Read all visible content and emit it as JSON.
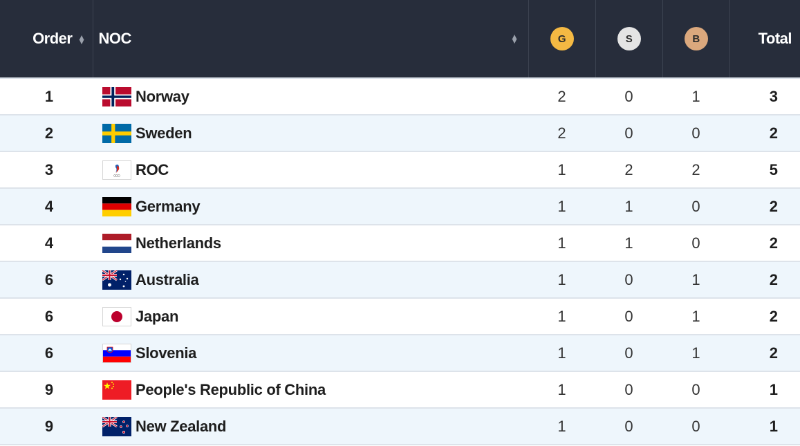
{
  "header": {
    "order_label": "Order",
    "noc_label": "NOC",
    "gold_label": "G",
    "silver_label": "S",
    "bronze_label": "B",
    "total_label": "Total"
  },
  "colors": {
    "header_bg": "#272d3b",
    "gold": "#f4b943",
    "silver": "#e4e4e4",
    "bronze": "#dba87d",
    "row_alt": "#eef6fc"
  },
  "rows": [
    {
      "order": "1",
      "noc": "Norway",
      "flag": "norway-flag",
      "gold": "2",
      "silver": "0",
      "bronze": "1",
      "total": "3"
    },
    {
      "order": "2",
      "noc": "Sweden",
      "flag": "sweden-flag",
      "gold": "2",
      "silver": "0",
      "bronze": "0",
      "total": "2"
    },
    {
      "order": "3",
      "noc": "ROC",
      "flag": "roc-flag",
      "gold": "1",
      "silver": "2",
      "bronze": "2",
      "total": "5"
    },
    {
      "order": "4",
      "noc": "Germany",
      "flag": "germany-flag",
      "gold": "1",
      "silver": "1",
      "bronze": "0",
      "total": "2"
    },
    {
      "order": "4",
      "noc": "Netherlands",
      "flag": "netherlands-flag",
      "gold": "1",
      "silver": "1",
      "bronze": "0",
      "total": "2"
    },
    {
      "order": "6",
      "noc": "Australia",
      "flag": "australia-flag",
      "gold": "1",
      "silver": "0",
      "bronze": "1",
      "total": "2"
    },
    {
      "order": "6",
      "noc": "Japan",
      "flag": "japan-flag",
      "gold": "1",
      "silver": "0",
      "bronze": "1",
      "total": "2"
    },
    {
      "order": "6",
      "noc": "Slovenia",
      "flag": "slovenia-flag",
      "gold": "1",
      "silver": "0",
      "bronze": "1",
      "total": "2"
    },
    {
      "order": "9",
      "noc": "People's Republic of China",
      "flag": "china-flag",
      "gold": "1",
      "silver": "0",
      "bronze": "0",
      "total": "1"
    },
    {
      "order": "9",
      "noc": "New Zealand",
      "flag": "new-zealand-flag",
      "gold": "1",
      "silver": "0",
      "bronze": "0",
      "total": "1"
    }
  ]
}
